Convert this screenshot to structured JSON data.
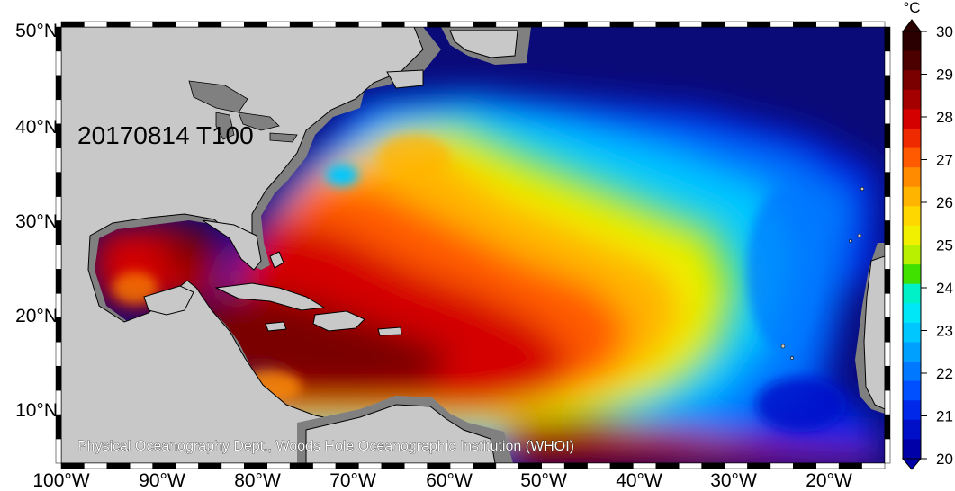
{
  "map": {
    "date_label": "20170814 T100",
    "credit": "Physical Oceanography Dept., Woods Hole Oceanographic Institution (WHOI)",
    "lat_labels": [
      "50°N",
      "40°N",
      "30°N",
      "20°N",
      "10°N"
    ],
    "lon_labels": [
      "100°W",
      "90°W",
      "80°W",
      "70°W",
      "60°W",
      "50°W",
      "40°W",
      "30°W",
      "20°W"
    ],
    "colors": {
      "land": "#c8c8c8",
      "shelf": "#808080",
      "coast": "#000000"
    }
  },
  "colorbar": {
    "unit": "°C",
    "ticks": [
      "30",
      "29",
      "28",
      "27",
      "26",
      "25",
      "24",
      "23",
      "22",
      "21",
      "20"
    ],
    "colors": [
      "#2a0000",
      "#4c0000",
      "#7a0000",
      "#a50000",
      "#d40000",
      "#f02a00",
      "#ff5a00",
      "#ff8c00",
      "#ffb400",
      "#ffd700",
      "#f0f000",
      "#b8f000",
      "#40e000",
      "#00f0c8",
      "#00e8f8",
      "#00c8ff",
      "#00a0ff",
      "#0078ff",
      "#0050ff",
      "#0028e8",
      "#0010c8",
      "#0000a8"
    ]
  }
}
